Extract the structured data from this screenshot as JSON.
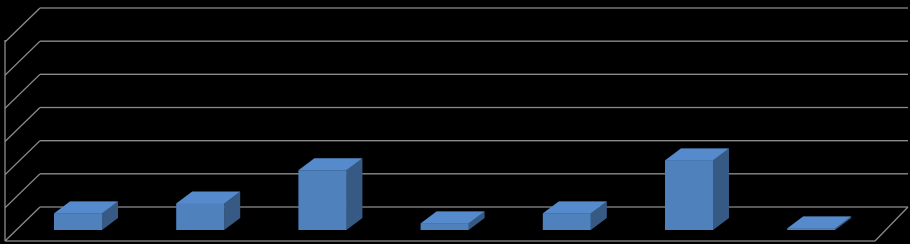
{
  "chart_data": {
    "type": "bar",
    "categories": [
      null,
      null,
      null,
      null,
      null,
      null,
      null
    ],
    "values": [
      0.5,
      0.8,
      1.8,
      0.2,
      0.5,
      2.1,
      0.05
    ],
    "color": "#4f81bd",
    "ylim": [
      0,
      6
    ],
    "yticks": [
      0,
      1,
      2,
      3,
      4,
      5,
      6
    ],
    "grid": true
  }
}
